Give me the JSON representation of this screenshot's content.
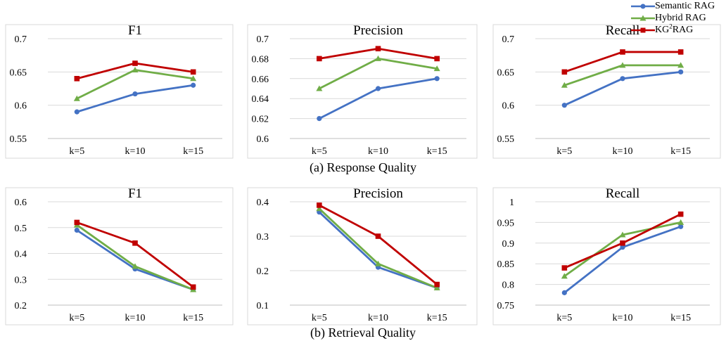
{
  "legend": {
    "items": [
      {
        "name": "Semantic RAG",
        "color": "#4472C4",
        "marker": "circle"
      },
      {
        "name": "Hybrid RAG",
        "color": "#70AD47",
        "marker": "triangle"
      },
      {
        "name": "KG",
        "sup": "2",
        "suffix": "RAG",
        "color": "#C00000",
        "marker": "square"
      }
    ],
    "placement": "top-right"
  },
  "captions": {
    "row1": "(a) Response Quality",
    "row2": "(b) Retrieval Quality"
  },
  "chart_data": [
    {
      "type": "line",
      "title": "F1",
      "group": "Response Quality",
      "categories": [
        "k=5",
        "k=10",
        "k=15"
      ],
      "ylim": [
        0.55,
        0.7
      ],
      "yticks": [
        "0.55",
        "0.6",
        "0.65",
        "0.7"
      ],
      "grid": true,
      "series": [
        {
          "name": "Semantic RAG",
          "values": [
            0.59,
            0.617,
            0.63
          ]
        },
        {
          "name": "Hybrid RAG",
          "values": [
            0.61,
            0.653,
            0.64
          ]
        },
        {
          "name": "KG2RAG",
          "values": [
            0.64,
            0.663,
            0.65
          ]
        }
      ]
    },
    {
      "type": "line",
      "title": "Precision",
      "group": "Response Quality",
      "categories": [
        "k=5",
        "k=10",
        "k=15"
      ],
      "ylim": [
        0.6,
        0.7
      ],
      "yticks": [
        "0.6",
        "0.62",
        "0.64",
        "0.66",
        "0.68",
        "0.7"
      ],
      "grid": true,
      "series": [
        {
          "name": "Semantic RAG",
          "values": [
            0.62,
            0.65,
            0.66
          ]
        },
        {
          "name": "Hybrid RAG",
          "values": [
            0.65,
            0.68,
            0.67
          ]
        },
        {
          "name": "KG2RAG",
          "values": [
            0.68,
            0.69,
            0.68
          ]
        }
      ]
    },
    {
      "type": "line",
      "title": "Recall",
      "group": "Response Quality",
      "categories": [
        "k=5",
        "k=10",
        "k=15"
      ],
      "ylim": [
        0.55,
        0.7
      ],
      "yticks": [
        "0.55",
        "0.6",
        "0.65",
        "0.7"
      ],
      "grid": true,
      "series": [
        {
          "name": "Semantic RAG",
          "values": [
            0.6,
            0.64,
            0.65
          ]
        },
        {
          "name": "Hybrid RAG",
          "values": [
            0.63,
            0.66,
            0.66
          ]
        },
        {
          "name": "KG2RAG",
          "values": [
            0.65,
            0.68,
            0.68
          ]
        }
      ]
    },
    {
      "type": "line",
      "title": "F1",
      "group": "Retrieval Quality",
      "categories": [
        "k=5",
        "k=10",
        "k=15"
      ],
      "ylim": [
        0.2,
        0.6
      ],
      "yticks": [
        "0.2",
        "0.3",
        "0.4",
        "0.5",
        "0.6"
      ],
      "grid": true,
      "series": [
        {
          "name": "Semantic RAG",
          "values": [
            0.49,
            0.34,
            0.26
          ]
        },
        {
          "name": "Hybrid RAG",
          "values": [
            0.51,
            0.35,
            0.26
          ]
        },
        {
          "name": "KG2RAG",
          "values": [
            0.52,
            0.44,
            0.27
          ]
        }
      ]
    },
    {
      "type": "line",
      "title": "Precision",
      "group": "Retrieval Quality",
      "categories": [
        "k=5",
        "k=10",
        "k=15"
      ],
      "ylim": [
        0.1,
        0.4
      ],
      "yticks": [
        "0.1",
        "0.2",
        "0.3",
        "0.4"
      ],
      "grid": true,
      "series": [
        {
          "name": "Semantic RAG",
          "values": [
            0.37,
            0.21,
            0.15
          ]
        },
        {
          "name": "Hybrid RAG",
          "values": [
            0.38,
            0.22,
            0.15
          ]
        },
        {
          "name": "KG2RAG",
          "values": [
            0.39,
            0.3,
            0.16
          ]
        }
      ]
    },
    {
      "type": "line",
      "title": "Recall",
      "group": "Retrieval Quality",
      "categories": [
        "k=5",
        "k=10",
        "k=15"
      ],
      "ylim": [
        0.75,
        1.0
      ],
      "yticks": [
        "0.75",
        "0.8",
        "0.85",
        "0.9",
        "0.95",
        "1"
      ],
      "grid": true,
      "series": [
        {
          "name": "Semantic RAG",
          "values": [
            0.78,
            0.89,
            0.94
          ]
        },
        {
          "name": "Hybrid RAG",
          "values": [
            0.82,
            0.92,
            0.95
          ]
        },
        {
          "name": "KG2RAG",
          "values": [
            0.84,
            0.9,
            0.97
          ]
        }
      ]
    }
  ]
}
